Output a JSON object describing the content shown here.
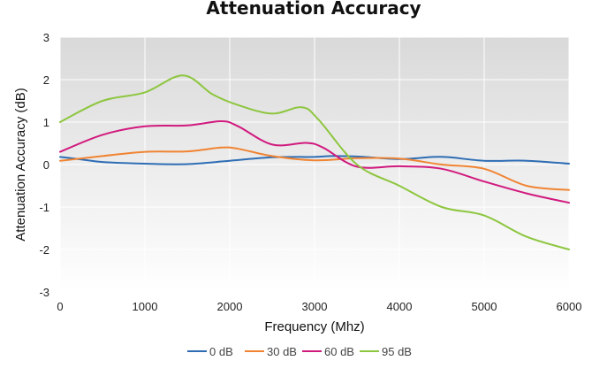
{
  "chart_data": {
    "type": "line",
    "title": "Attenuation Accuracy",
    "xlabel": "Frequency (Mhz)",
    "ylabel": "Attenuation Accuracy (dB)",
    "xlim": [
      0,
      6000
    ],
    "ylim": [
      -3,
      3
    ],
    "x_ticks": [
      "0",
      "1000",
      "2000",
      "3000",
      "4000",
      "5000",
      "6000"
    ],
    "y_ticks": [
      "3",
      "2",
      "1",
      "0",
      "-1",
      "-2",
      "-3"
    ],
    "grid": true,
    "legend_position": "bottom",
    "series": [
      {
        "name": "0 dB",
        "color": "#2e6db4",
        "points": [
          [
            0,
            0.18
          ],
          [
            250,
            0.12
          ],
          [
            500,
            0.06
          ],
          [
            1000,
            0.02
          ],
          [
            1500,
            0.01
          ],
          [
            2000,
            0.09
          ],
          [
            2500,
            0.17
          ],
          [
            3000,
            0.18
          ],
          [
            3200,
            0.2
          ],
          [
            3500,
            0.19
          ],
          [
            4000,
            0.13
          ],
          [
            4400,
            0.18
          ],
          [
            4600,
            0.17
          ],
          [
            5000,
            0.09
          ],
          [
            5500,
            0.09
          ],
          [
            6000,
            0.02
          ]
        ]
      },
      {
        "name": "30 dB",
        "color": "#f08433",
        "points": [
          [
            0,
            0.09
          ],
          [
            500,
            0.2
          ],
          [
            1000,
            0.3
          ],
          [
            1500,
            0.31
          ],
          [
            1900,
            0.4
          ],
          [
            2100,
            0.37
          ],
          [
            2500,
            0.2
          ],
          [
            3000,
            0.1
          ],
          [
            3500,
            0.15
          ],
          [
            4000,
            0.14
          ],
          [
            4500,
            0.0
          ],
          [
            5000,
            -0.1
          ],
          [
            5500,
            -0.5
          ],
          [
            6000,
            -0.6
          ]
        ]
      },
      {
        "name": "60 dB",
        "color": "#d11a7e",
        "points": [
          [
            0,
            0.3
          ],
          [
            500,
            0.7
          ],
          [
            1000,
            0.9
          ],
          [
            1500,
            0.92
          ],
          [
            1900,
            1.02
          ],
          [
            2100,
            0.9
          ],
          [
            2500,
            0.47
          ],
          [
            2900,
            0.51
          ],
          [
            3100,
            0.4
          ],
          [
            3500,
            -0.05
          ],
          [
            4000,
            -0.04
          ],
          [
            4500,
            -0.1
          ],
          [
            5000,
            -0.4
          ],
          [
            5500,
            -0.68
          ],
          [
            6000,
            -0.9
          ]
        ]
      },
      {
        "name": "95 dB",
        "color": "#8dc63f",
        "points": [
          [
            0,
            1.0
          ],
          [
            500,
            1.5
          ],
          [
            1000,
            1.7
          ],
          [
            1450,
            2.1
          ],
          [
            1800,
            1.65
          ],
          [
            2100,
            1.4
          ],
          [
            2500,
            1.2
          ],
          [
            2850,
            1.35
          ],
          [
            3050,
            1.05
          ],
          [
            3500,
            0.0
          ],
          [
            4000,
            -0.5
          ],
          [
            4500,
            -1.0
          ],
          [
            5000,
            -1.2
          ],
          [
            5500,
            -1.7
          ],
          [
            6000,
            -2.0
          ]
        ]
      }
    ]
  }
}
